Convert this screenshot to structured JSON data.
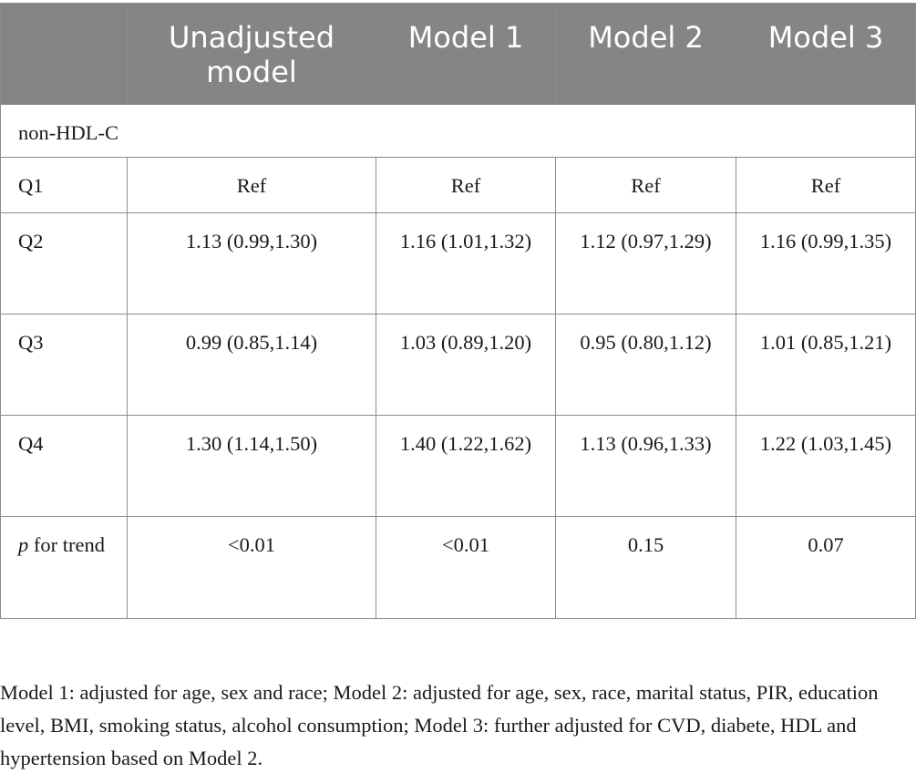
{
  "table": {
    "headers": [
      "",
      "Unadjusted model",
      "Model 1",
      "Model 2",
      "Model 3"
    ],
    "section_label": "non-HDL-C",
    "rows": [
      {
        "label": "Q1",
        "cells": [
          "Ref",
          "Ref",
          "Ref",
          "Ref"
        ]
      },
      {
        "label": "Q2",
        "cells": [
          "1.13 (0.99,1.30)",
          "1.16 (1.01,1.32)",
          "1.12 (0.97,1.29)",
          "1.16 (0.99,1.35)"
        ]
      },
      {
        "label": "Q3",
        "cells": [
          "0.99 (0.85,1.14)",
          "1.03 (0.89,1.20)",
          "0.95 (0.80,1.12)",
          "1.01 (0.85,1.21)"
        ]
      },
      {
        "label": "Q4",
        "cells": [
          "1.30 (1.14,1.50)",
          "1.40 (1.22,1.62)",
          "1.13 (0.96,1.33)",
          "1.22 (1.03,1.45)"
        ]
      }
    ],
    "trend_row": {
      "label_italic": "p",
      "label_rest": " for trend",
      "cells": [
        "<0.01",
        "<0.01",
        "0.15",
        "0.07"
      ]
    }
  },
  "footnote": "Model 1: adjusted for age, sex and race; Model 2: adjusted for age, sex, race, marital status, PIR, education level, BMI, smoking status, alcohol consumption; Model 3: further adjusted for CVD, diabete, HDL and hypertension based on Model 2."
}
